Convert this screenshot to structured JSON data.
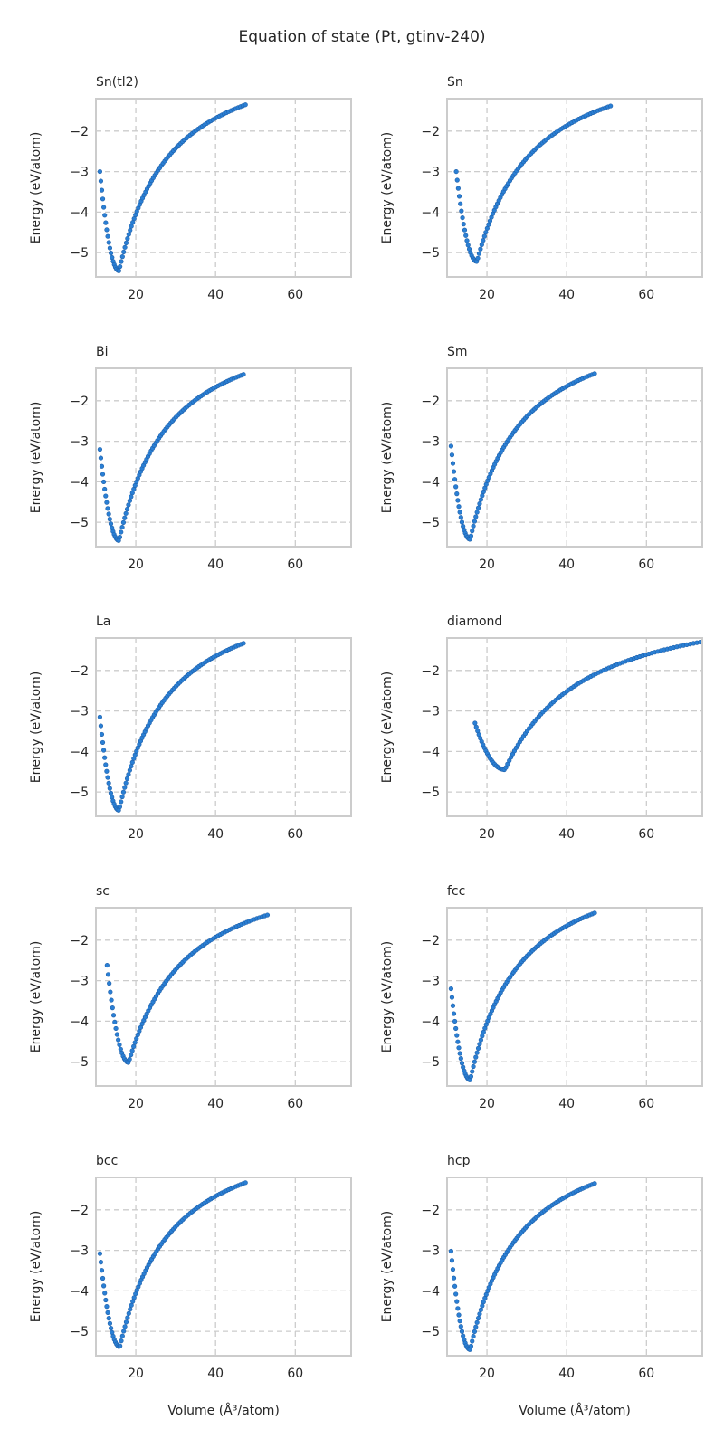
{
  "figure": {
    "title": "Equation of state (Pt, gtinv-240)"
  },
  "style": {
    "point_color": "#2a7fd4",
    "point_edge": "#1f5fa8",
    "grid_color": "#cccccc",
    "frame_color": "#cccccc",
    "text_color": "#262626"
  },
  "chart_data": [
    {
      "type": "scatter",
      "title": "Sn(tl2)",
      "xlabel": "",
      "ylabel": "Energy (eV/atom)",
      "xlim": [
        10,
        74
      ],
      "ylim": [
        -5.6,
        -1.2
      ],
      "xticks": [
        20,
        40,
        60
      ],
      "yticks": [
        -2,
        -3,
        -4,
        -5
      ],
      "grid": true,
      "x_range": [
        11.0,
        47.5
      ],
      "v_min": 15.8,
      "e_min": -5.45,
      "e_start": -3.0,
      "e_end": -1.35,
      "n_points": 90
    },
    {
      "type": "scatter",
      "title": "Sn",
      "xlabel": "",
      "ylabel": "Energy (eV/atom)",
      "xlim": [
        10,
        74
      ],
      "ylim": [
        -5.6,
        -1.2
      ],
      "xticks": [
        20,
        40,
        60
      ],
      "yticks": [
        -2,
        -3,
        -4,
        -5
      ],
      "grid": true,
      "x_range": [
        12.3,
        51.0
      ],
      "v_min": 17.5,
      "e_min": -5.22,
      "e_start": -3.0,
      "e_end": -1.38,
      "n_points": 90
    },
    {
      "type": "scatter",
      "title": "Bi",
      "xlabel": "",
      "ylabel": "Energy (eV/atom)",
      "xlim": [
        10,
        74
      ],
      "ylim": [
        -5.6,
        -1.2
      ],
      "xticks": [
        20,
        40,
        60
      ],
      "yticks": [
        -2,
        -3,
        -4,
        -5
      ],
      "grid": true,
      "x_range": [
        11.0,
        47.0
      ],
      "v_min": 15.8,
      "e_min": -5.45,
      "e_start": -3.2,
      "e_end": -1.35,
      "n_points": 90
    },
    {
      "type": "scatter",
      "title": "Sm",
      "xlabel": "",
      "ylabel": "Energy (eV/atom)",
      "xlim": [
        10,
        74
      ],
      "ylim": [
        -5.6,
        -1.2
      ],
      "xticks": [
        20,
        40,
        60
      ],
      "yticks": [
        -2,
        -3,
        -4,
        -5
      ],
      "grid": true,
      "x_range": [
        11.0,
        47.0
      ],
      "v_min": 15.8,
      "e_min": -5.42,
      "e_start": -3.12,
      "e_end": -1.33,
      "n_points": 90
    },
    {
      "type": "scatter",
      "title": "La",
      "xlabel": "",
      "ylabel": "Energy (eV/atom)",
      "xlim": [
        10,
        74
      ],
      "ylim": [
        -5.6,
        -1.2
      ],
      "xticks": [
        20,
        40,
        60
      ],
      "yticks": [
        -2,
        -3,
        -4,
        -5
      ],
      "grid": true,
      "x_range": [
        11.0,
        47.0
      ],
      "v_min": 15.8,
      "e_min": -5.45,
      "e_start": -3.15,
      "e_end": -1.33,
      "n_points": 90
    },
    {
      "type": "scatter",
      "title": "diamond",
      "xlabel": "",
      "ylabel": "Energy (eV/atom)",
      "xlim": [
        10,
        74
      ],
      "ylim": [
        -5.6,
        -1.2
      ],
      "xticks": [
        20,
        40,
        60
      ],
      "yticks": [
        -2,
        -3,
        -4,
        -5
      ],
      "grid": true,
      "x_range": [
        17.0,
        73.5
      ],
      "v_min": 24.5,
      "e_min": -4.45,
      "e_start": -3.3,
      "e_end": -1.3,
      "n_points": 100
    },
    {
      "type": "scatter",
      "title": "sc",
      "xlabel": "",
      "ylabel": "Energy (eV/atom)",
      "xlim": [
        10,
        74
      ],
      "ylim": [
        -5.6,
        -1.2
      ],
      "xticks": [
        20,
        40,
        60
      ],
      "yticks": [
        -2,
        -3,
        -4,
        -5
      ],
      "grid": true,
      "x_range": [
        12.8,
        53.0
      ],
      "v_min": 18.2,
      "e_min": -5.02,
      "e_start": -2.62,
      "e_end": -1.38,
      "n_points": 90
    },
    {
      "type": "scatter",
      "title": "fcc",
      "xlabel": "",
      "ylabel": "Energy (eV/atom)",
      "xlim": [
        10,
        74
      ],
      "ylim": [
        -5.6,
        -1.2
      ],
      "xticks": [
        20,
        40,
        60
      ],
      "yticks": [
        -2,
        -3,
        -4,
        -5
      ],
      "grid": true,
      "x_range": [
        11.0,
        47.0
      ],
      "v_min": 15.8,
      "e_min": -5.45,
      "e_start": -3.2,
      "e_end": -1.33,
      "n_points": 90
    },
    {
      "type": "scatter",
      "title": "bcc",
      "xlabel": "Volume (Å³/atom)",
      "ylabel": "Energy (eV/atom)",
      "xlim": [
        10,
        74
      ],
      "ylim": [
        -5.6,
        -1.2
      ],
      "xticks": [
        20,
        40,
        60
      ],
      "yticks": [
        -2,
        -3,
        -4,
        -5
      ],
      "grid": true,
      "x_range": [
        11.0,
        47.5
      ],
      "v_min": 16.0,
      "e_min": -5.38,
      "e_start": -3.08,
      "e_end": -1.33,
      "n_points": 90
    },
    {
      "type": "scatter",
      "title": "hcp",
      "xlabel": "Volume (Å³/atom)",
      "ylabel": "Energy (eV/atom)",
      "xlim": [
        10,
        74
      ],
      "ylim": [
        -5.6,
        -1.2
      ],
      "xticks": [
        20,
        40,
        60
      ],
      "yticks": [
        -2,
        -3,
        -4,
        -5
      ],
      "grid": true,
      "x_range": [
        11.0,
        47.0
      ],
      "v_min": 15.8,
      "e_min": -5.45,
      "e_start": -3.02,
      "e_end": -1.35,
      "n_points": 90
    }
  ]
}
